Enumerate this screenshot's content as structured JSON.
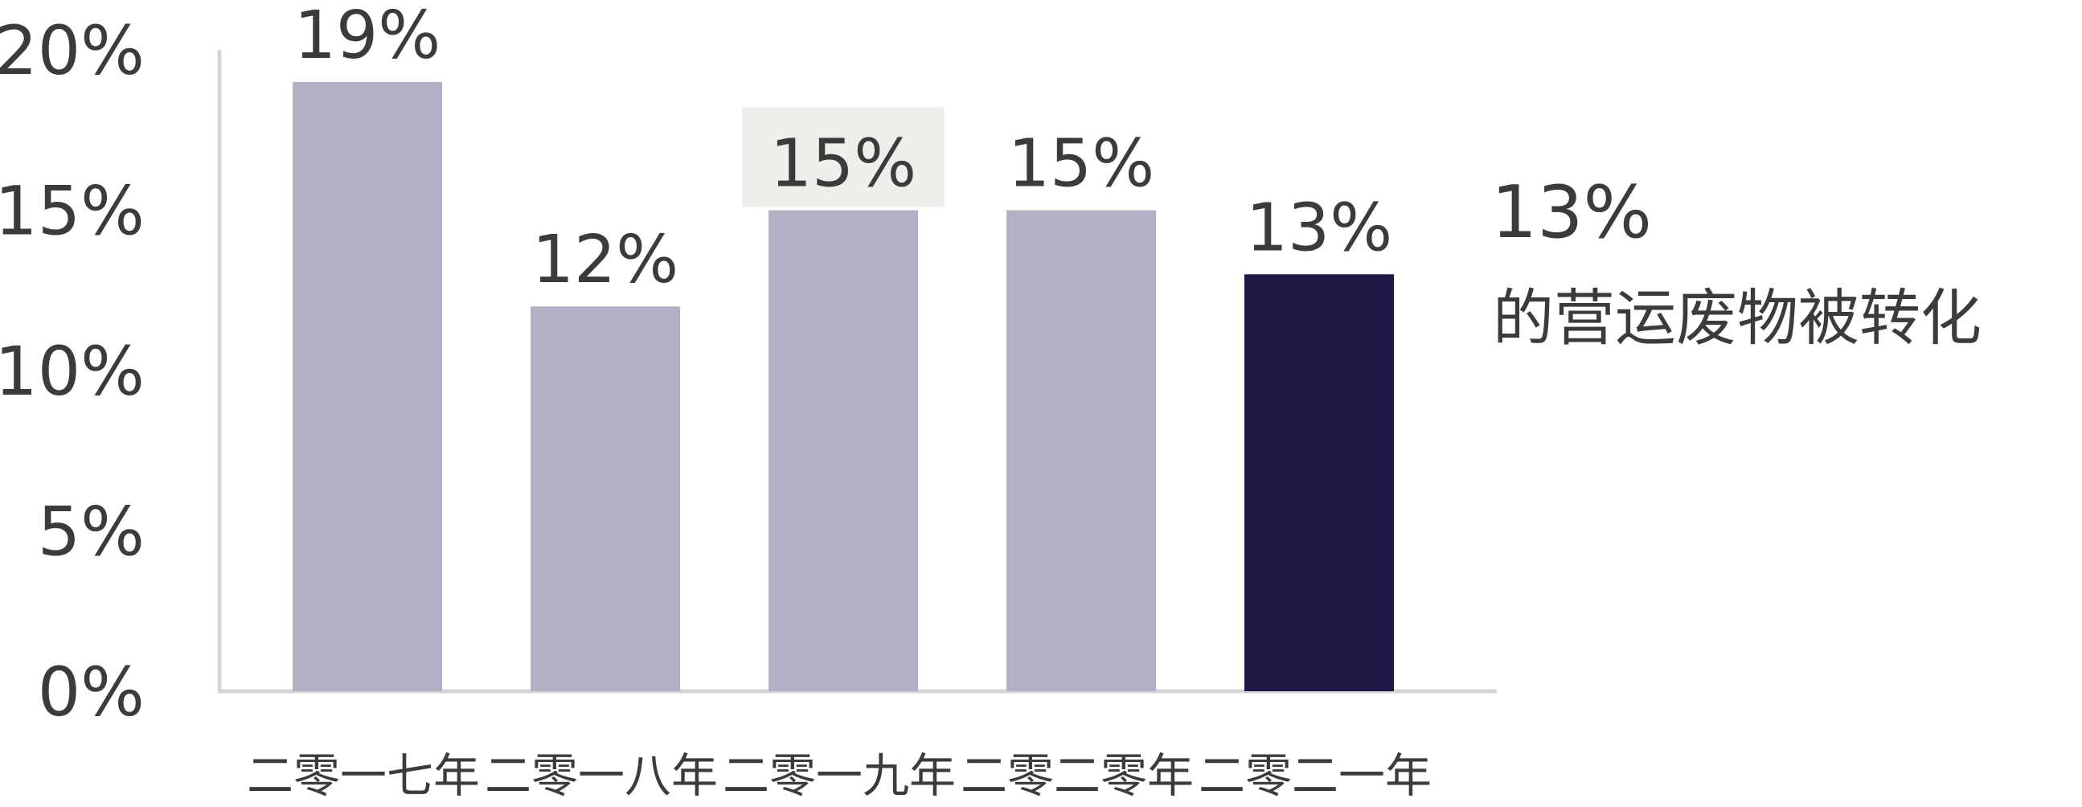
{
  "chart_data": {
    "type": "bar",
    "categories": [
      "二零一七年",
      "二零一八年",
      "二零一九年",
      "二零二零年",
      "二零二一年"
    ],
    "values": [
      19,
      12,
      15,
      15,
      13
    ],
    "data_labels": [
      "19%",
      "12%",
      "15%",
      "15%",
      "13%"
    ],
    "highlight_index": 4,
    "highlight_label_box_index": 2,
    "ylim": [
      0,
      20
    ],
    "yticks": [
      0,
      5,
      10,
      15,
      20
    ],
    "ytick_labels": [
      "0%",
      "5%",
      "10%",
      "15%",
      "20%"
    ],
    "grid": false,
    "xlabel": "",
    "ylabel": "",
    "title": ""
  },
  "callout": {
    "value": "13%",
    "text": "的营运废物被转化"
  },
  "colors": {
    "bar": "#b3b0c6",
    "highlight_bar": "#1f1745",
    "axis": "#d4d4d6",
    "text": "#3d3a3c",
    "label_box": "#f0eeeb"
  }
}
